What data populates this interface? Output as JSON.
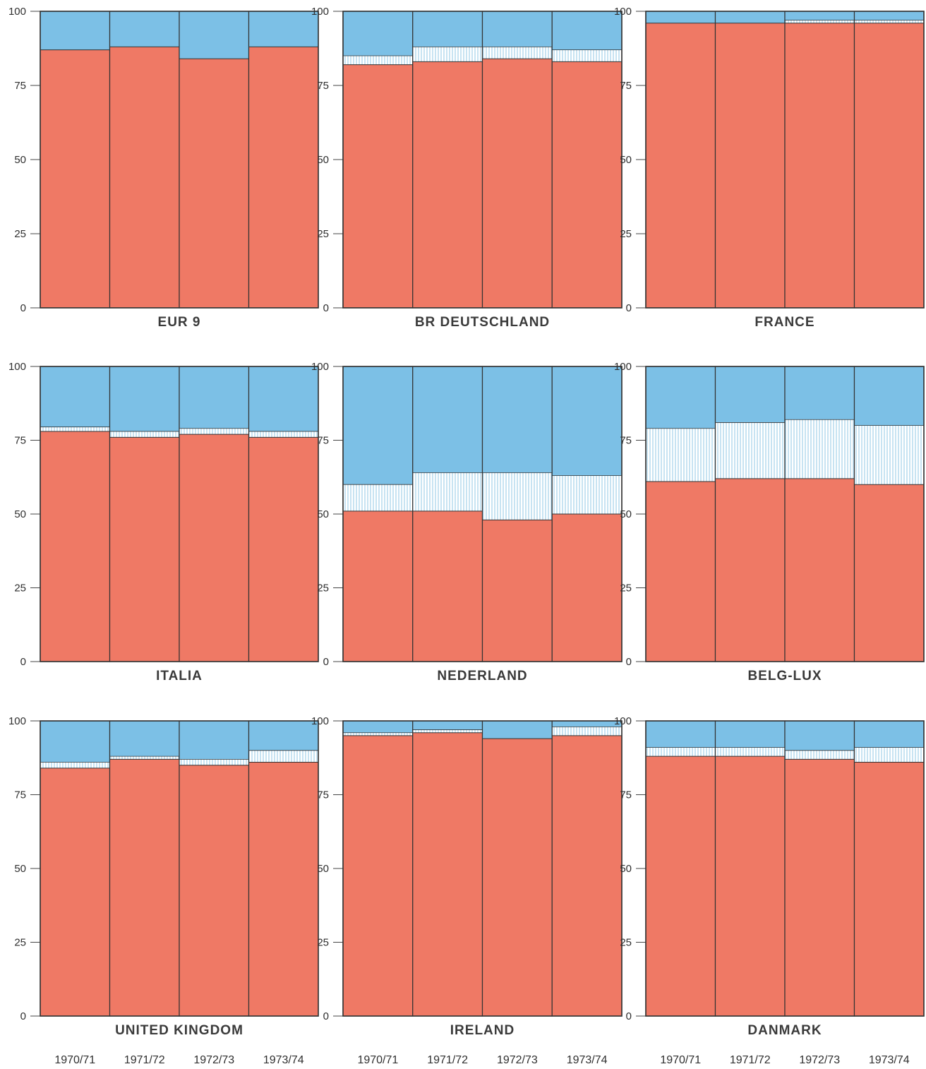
{
  "chart_data": {
    "type": "bar",
    "subtype": "stacked-100",
    "categories": [
      "1970/71",
      "1971/72",
      "1972/73",
      "1973/74"
    ],
    "ylim": [
      0,
      100
    ],
    "yticks": [
      0,
      25,
      50,
      75,
      100
    ],
    "colors": {
      "bottom": "#ef7965",
      "middle": "#ffffff",
      "middle_hatch": "#8fc7e6",
      "top": "#7cc0e6",
      "outline": "#333333"
    },
    "panels": [
      {
        "label": "EUR 9",
        "bottom": [
          87,
          88,
          84,
          88
        ],
        "middle": [
          0,
          0,
          0,
          0
        ]
      },
      {
        "label": "BR DEUTSCHLAND",
        "bottom": [
          82,
          83,
          84,
          83
        ],
        "middle": [
          3,
          5,
          4,
          4
        ]
      },
      {
        "label": "FRANCE",
        "bottom": [
          96,
          96,
          96,
          96
        ],
        "middle": [
          0,
          0,
          1,
          1
        ]
      },
      {
        "label": "ITALIA",
        "bottom": [
          78,
          76,
          77,
          76
        ],
        "middle": [
          1.5,
          2,
          2,
          2
        ]
      },
      {
        "label": "NEDERLAND",
        "bottom": [
          51,
          51,
          48,
          50
        ],
        "middle": [
          9,
          13,
          16,
          13
        ]
      },
      {
        "label": "BELG-LUX",
        "bottom": [
          61,
          62,
          62,
          60
        ],
        "middle": [
          18,
          19,
          20,
          20
        ]
      },
      {
        "label": "UNITED KINGDOM",
        "bottom": [
          84,
          87,
          85,
          86
        ],
        "middle": [
          2,
          1,
          2,
          4
        ]
      },
      {
        "label": "IRELAND",
        "bottom": [
          95,
          96,
          94,
          95
        ],
        "middle": [
          1,
          1,
          0,
          3
        ]
      },
      {
        "label": "DANMARK",
        "bottom": [
          88,
          88,
          87,
          86
        ],
        "middle": [
          3,
          3,
          3,
          5
        ]
      }
    ]
  }
}
